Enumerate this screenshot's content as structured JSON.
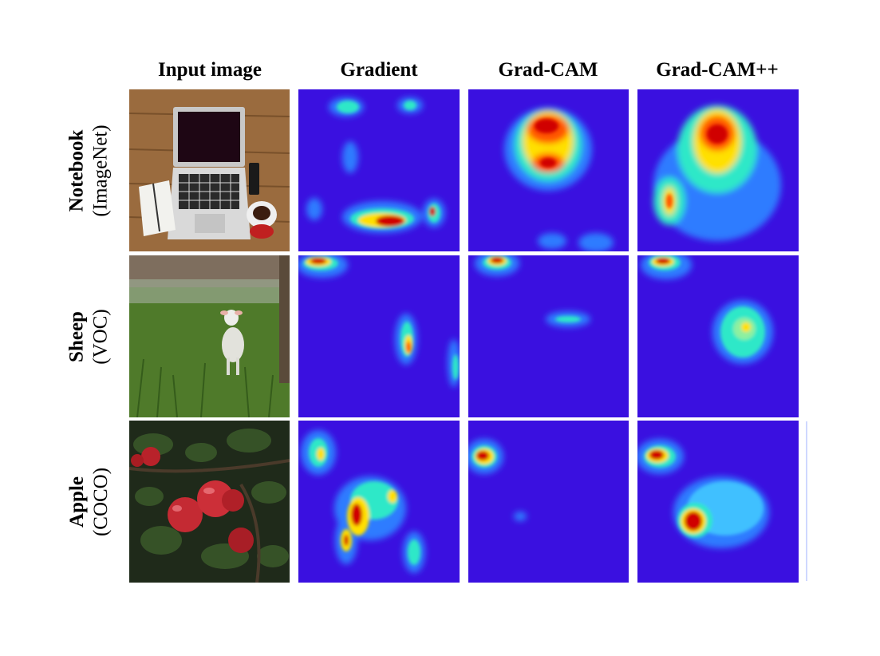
{
  "columns": [
    "Input image",
    "Gradient",
    "Grad-CAM",
    "Grad-CAM++"
  ],
  "rows": [
    {
      "name": "Notebook",
      "dataset": "(ImageNet)"
    },
    {
      "name": "Sheep",
      "dataset": "(VOC)"
    },
    {
      "name": "Apple",
      "dataset": "(COCO)"
    }
  ],
  "colors": {
    "heatmap_background": "#3a10e0",
    "heatmap_low": "#2f7cff",
    "heatmap_mid": "#2de8c8",
    "heatmap_high": "#ffe000",
    "heatmap_peak": "#d00000"
  }
}
